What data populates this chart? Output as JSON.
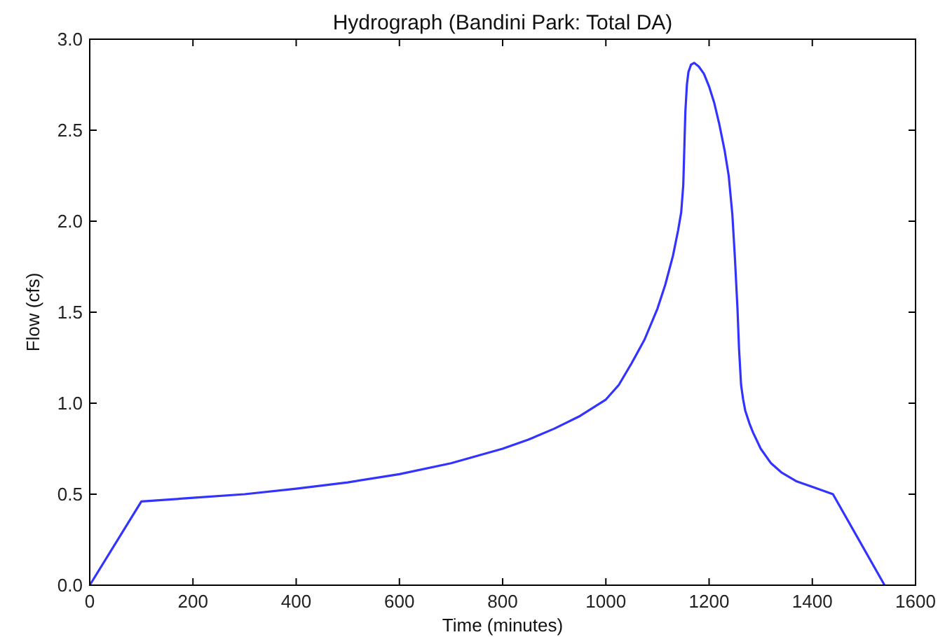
{
  "chart_data": {
    "type": "line",
    "title": "Hydrograph (Bandini Park: Total DA)",
    "xlabel": "Time (minutes)",
    "ylabel": "Flow (cfs)",
    "xlim": [
      0,
      1600
    ],
    "xticks": [
      0,
      200,
      400,
      600,
      800,
      1000,
      1200,
      1400,
      1600
    ],
    "ylim": [
      0,
      3.0
    ],
    "yticks": [
      {
        "value": 0,
        "label": "0.0"
      },
      {
        "value": 0.5,
        "label": "0.5"
      },
      {
        "value": 1,
        "label": "1.0"
      },
      {
        "value": 1.5,
        "label": "1.5"
      },
      {
        "value": 2,
        "label": "2.0"
      },
      {
        "value": 2.5,
        "label": "2.5"
      },
      {
        "value": 3,
        "label": "3.0"
      }
    ],
    "series": [
      {
        "color": "#3333ff",
        "x": [
          0,
          100,
          200,
          300,
          400,
          500,
          600,
          700,
          800,
          850,
          900,
          950,
          1000,
          1025,
          1050,
          1075,
          1100,
          1115,
          1130,
          1140,
          1146,
          1150,
          1152,
          1154,
          1157,
          1160,
          1165,
          1171,
          1180,
          1190,
          1200,
          1210,
          1220,
          1230,
          1238,
          1245,
          1250,
          1255,
          1258,
          1262,
          1266,
          1270,
          1278,
          1285,
          1300,
          1320,
          1340,
          1370,
          1400,
          1420,
          1440,
          1540
        ],
        "values": [
          0,
          0.46,
          0.48,
          0.5,
          0.53,
          0.565,
          0.61,
          0.67,
          0.75,
          0.8,
          0.86,
          0.93,
          1.02,
          1.1,
          1.22,
          1.35,
          1.52,
          1.65,
          1.81,
          1.95,
          2.05,
          2.2,
          2.4,
          2.6,
          2.75,
          2.82,
          2.86,
          2.87,
          2.85,
          2.81,
          2.74,
          2.65,
          2.53,
          2.39,
          2.25,
          2.04,
          1.8,
          1.52,
          1.3,
          1.1,
          1.02,
          0.96,
          0.89,
          0.84,
          0.75,
          0.67,
          0.62,
          0.57,
          0.54,
          0.52,
          0.5,
          0
        ]
      }
    ]
  }
}
